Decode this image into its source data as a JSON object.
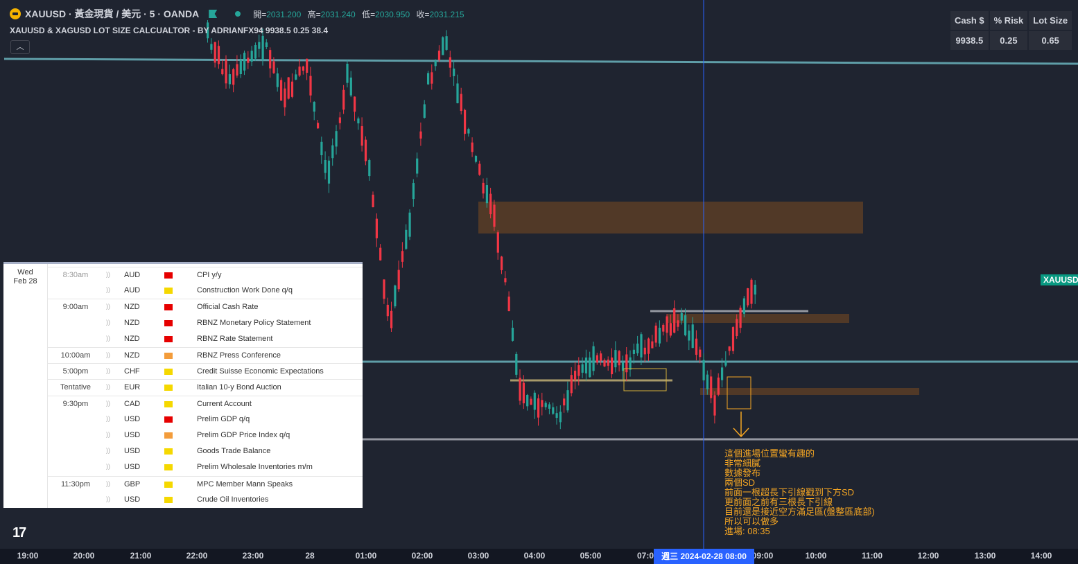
{
  "header": {
    "symbol_title": "XAUUSD · 黃金現貨 / 美元 · 5 · OANDA",
    "ohlc": [
      {
        "label": "開=",
        "value": "2031.200"
      },
      {
        "label": "高=",
        "value": "2031.240"
      },
      {
        "label": "低=",
        "value": "2030.950"
      },
      {
        "label": "收=",
        "value": "2031.215"
      }
    ],
    "indicator": "XAUUSD & XAGUSD LOT SIZE CALCUALTOR - BY ADRIANFX94 9938.5 0.25 38.4",
    "collapse_icon": "chevron-up-icon"
  },
  "lot_table": {
    "headers": [
      "Cash $",
      "% Risk",
      "Lot Size"
    ],
    "values": [
      "9938.5",
      "0.25",
      "0.65"
    ]
  },
  "price_label": "XAUUSD",
  "calendar": {
    "day": "Wed",
    "date": "Feb 28",
    "events": [
      {
        "time": "8:30am",
        "time_dim": true,
        "currency": "AUD",
        "impact": "high",
        "event": "CPI y/y"
      },
      {
        "time": "",
        "currency": "AUD",
        "impact": "low",
        "event": "Construction Work Done q/q"
      },
      {
        "time": "9:00am",
        "currency": "NZD",
        "impact": "high",
        "event": "Official Cash Rate"
      },
      {
        "time": "",
        "currency": "NZD",
        "impact": "high",
        "event": "RBNZ Monetary Policy Statement"
      },
      {
        "time": "",
        "currency": "NZD",
        "impact": "high",
        "event": "RBNZ Rate Statement"
      },
      {
        "time": "10:00am",
        "currency": "NZD",
        "impact": "med",
        "event": "RBNZ Press Conference"
      },
      {
        "time": "5:00pm",
        "currency": "CHF",
        "impact": "low",
        "event": "Credit Suisse Economic Expectations"
      },
      {
        "time": "Tentative",
        "currency": "EUR",
        "impact": "low",
        "event": "Italian 10-y Bond Auction"
      },
      {
        "time": "9:30pm",
        "currency": "CAD",
        "impact": "low",
        "event": "Current Account"
      },
      {
        "time": "",
        "currency": "USD",
        "impact": "high",
        "event": "Prelim GDP q/q"
      },
      {
        "time": "",
        "currency": "USD",
        "impact": "med",
        "event": "Prelim GDP Price Index q/q"
      },
      {
        "time": "",
        "currency": "USD",
        "impact": "low",
        "event": "Goods Trade Balance"
      },
      {
        "time": "",
        "currency": "USD",
        "impact": "low",
        "event": "Prelim Wholesale Inventories m/m"
      },
      {
        "time": "11:30pm",
        "currency": "GBP",
        "impact": "low",
        "event": "MPC Member Mann Speaks"
      },
      {
        "time": "",
        "currency": "USD",
        "impact": "low",
        "event": "Crude Oil Inventories"
      }
    ]
  },
  "note": "這個進場位置蠻有趣的\n非常細膩\n數據發布\n兩個SD\n前面一根超長下引線戳到下方SD\n更前面之前有三根長下引線\n目前還是接近空方滿足區(盤整區底部)\n所以可以做多\n進場: 08:35",
  "time_axis": {
    "labels": [
      "19:00",
      "20:00",
      "21:00",
      "22:00",
      "23:00",
      "28",
      "01:00",
      "02:00",
      "03:00",
      "04:00",
      "05:00",
      "07:0",
      "09:00",
      "10:00",
      "11:00",
      "12:00",
      "13:00",
      "14:00"
    ],
    "cursor_label": "週三 2024-02-28   08:00"
  },
  "logo": "TradingView",
  "colors": {
    "background": "#1f2430",
    "bull": "#26a69a",
    "bear": "#f23645",
    "cursor": "#2962ff",
    "supply_zone": "#5a3d26",
    "note": "#f5a623"
  }
}
